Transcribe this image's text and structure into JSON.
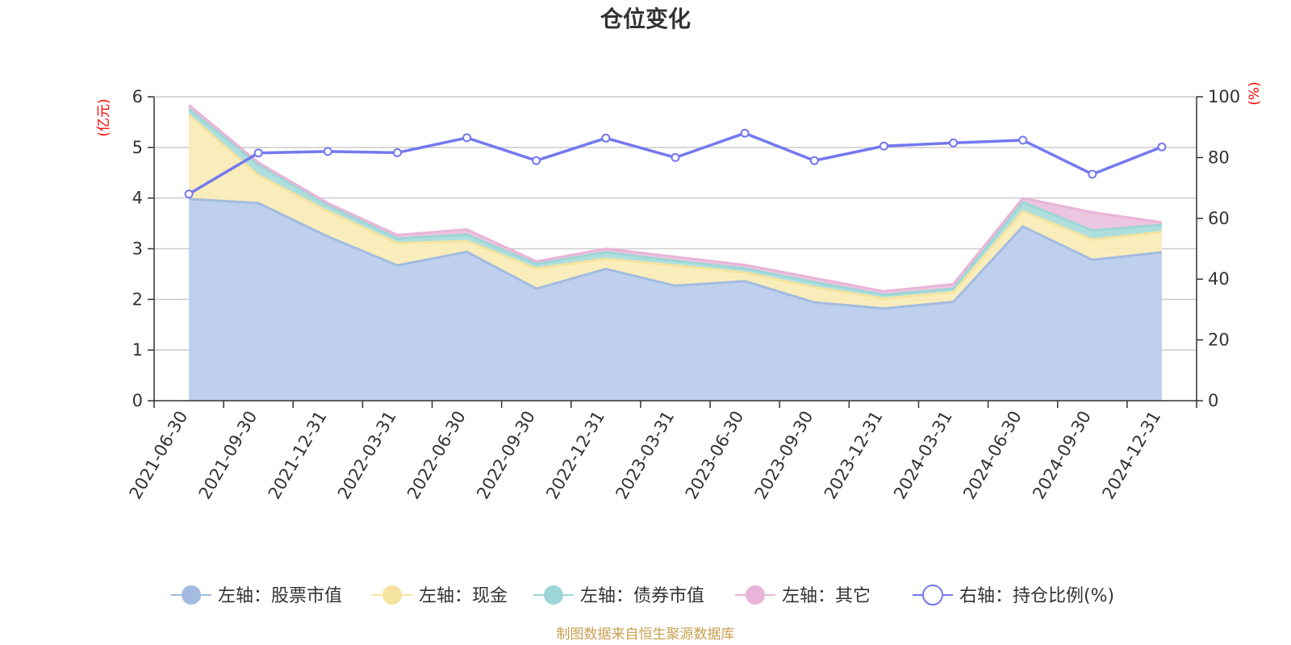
{
  "chart_data": {
    "type": "area",
    "title": "仓位变化",
    "categories": [
      "2021-06-30",
      "2021-09-30",
      "2021-12-31",
      "2022-03-31",
      "2022-06-30",
      "2022-09-30",
      "2022-12-31",
      "2023-03-31",
      "2023-06-30",
      "2023-09-30",
      "2023-12-31",
      "2024-03-31",
      "2024-06-30",
      "2024-09-30",
      "2024-12-31"
    ],
    "left_axis": {
      "unit": "(亿元)",
      "ylim": [
        0,
        6
      ],
      "ticks": [
        "0",
        "1",
        "2",
        "3",
        "4",
        "5",
        "6"
      ]
    },
    "right_axis": {
      "unit": "(%)",
      "ylim": [
        0,
        100
      ],
      "ticks": [
        "0",
        "20",
        "40",
        "60",
        "80",
        "100"
      ]
    },
    "stack_series": [
      {
        "name": "左轴：股票市值",
        "color": "#a3bbe0",
        "fill": "#b8cceb",
        "values": [
          3.98,
          3.9,
          3.24,
          2.67,
          2.94,
          2.21,
          2.6,
          2.27,
          2.36,
          1.94,
          1.82,
          1.95,
          3.44,
          2.78,
          2.93
        ]
      },
      {
        "name": "左轴：现金",
        "color": "#f5e3a0",
        "fill": "#f8ebb5",
        "values": [
          1.66,
          0.55,
          0.5,
          0.44,
          0.21,
          0.4,
          0.2,
          0.4,
          0.17,
          0.3,
          0.2,
          0.19,
          0.3,
          0.4,
          0.4
        ]
      },
      {
        "name": "左轴：债券市值",
        "color": "#9dd6d6",
        "fill": "#a8dcd9",
        "values": [
          0.12,
          0.2,
          0.12,
          0.09,
          0.13,
          0.09,
          0.13,
          0.09,
          0.08,
          0.1,
          0.07,
          0.07,
          0.18,
          0.18,
          0.14
        ]
      },
      {
        "name": "左轴：其它",
        "color": "#e8b5d8",
        "fill": "#eac0de",
        "values": [
          0.08,
          0.05,
          0.04,
          0.07,
          0.1,
          0.05,
          0.07,
          0.08,
          0.07,
          0.08,
          0.07,
          0.09,
          0.08,
          0.36,
          0.05
        ]
      }
    ],
    "line_series": {
      "name": "右轴：持仓比例(%)",
      "color": "#7478f0",
      "values": [
        68.0,
        81.5,
        82.0,
        81.6,
        86.5,
        79.0,
        86.4,
        80.0,
        88.0,
        79.0,
        83.8,
        84.8,
        85.7,
        74.5,
        83.5
      ]
    },
    "legend_position": "bottom",
    "grid": true
  },
  "source_note": "制图数据来自恒生聚源数据库"
}
